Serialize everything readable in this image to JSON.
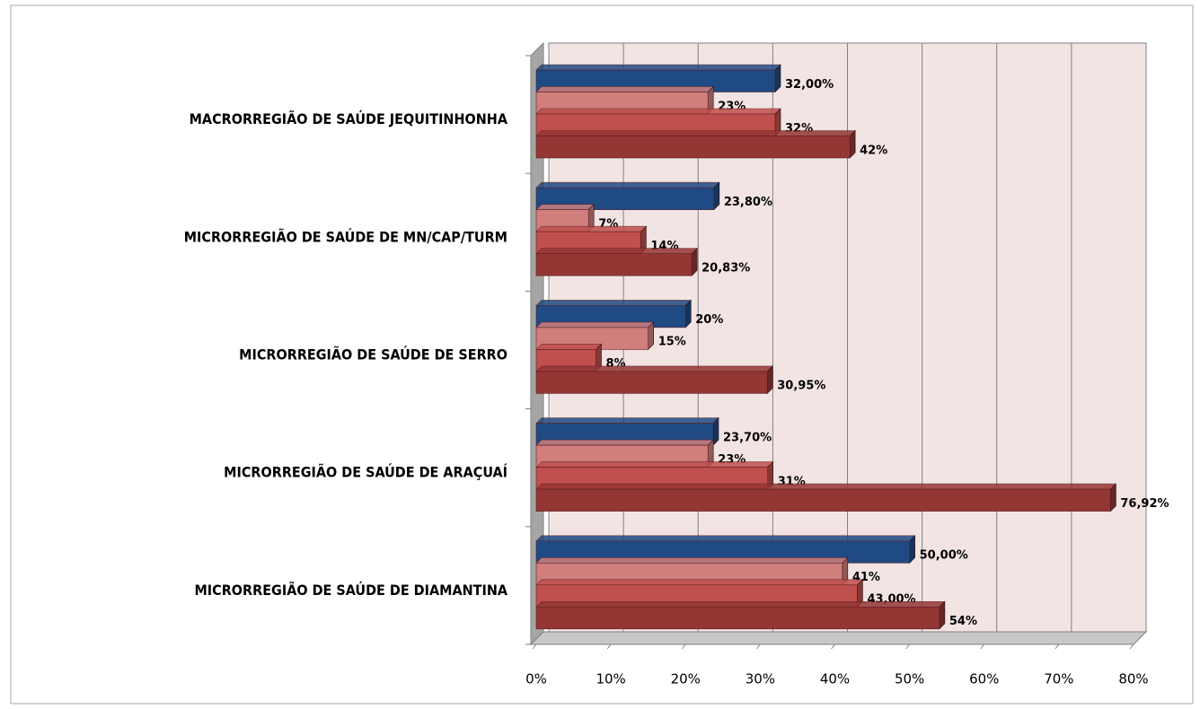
{
  "chart_data": {
    "type": "bar",
    "orientation": "horizontal",
    "categories": [
      "MACRORREGIÃO DE  SAÚDE  JEQUITINHONHA",
      "MICRORREGIÃO DE  SAÚDE  DE  MN/CAP/TURM",
      "MICRORREGIÃO DE  SAÚDE  DE SERRO",
      "MICRORREGIÃO DE  SAÚDE  DE ARAÇUAÍ",
      "MICRORREGIÃO DE  SAÚDE  DE  DIAMANTINA"
    ],
    "series": [
      {
        "color": "#1f4a84",
        "values": [
          32.0,
          23.8,
          20,
          23.7,
          50.0
        ],
        "value_labels": [
          "32,00%",
          "23,80%",
          "20%",
          "23,70%",
          "50,00%"
        ]
      },
      {
        "color": "#d07f7d",
        "values": [
          23,
          7,
          15,
          23,
          41
        ],
        "value_labels": [
          "23%",
          "7%",
          "15%",
          "23%",
          "41%"
        ]
      },
      {
        "color": "#c0504d",
        "values": [
          32,
          14,
          8,
          31,
          43.0
        ],
        "value_labels": [
          "32%",
          "14%",
          "8%",
          "31%",
          "43,00%"
        ]
      },
      {
        "color": "#943634",
        "values": [
          42,
          20.83,
          30.95,
          76.92,
          54
        ],
        "value_labels": [
          "42%",
          "20,83%",
          "30,95%",
          "76,92%",
          "54%"
        ]
      }
    ],
    "xlim": [
      0,
      80
    ],
    "xticks": [
      {
        "value": 0,
        "label": "0%"
      },
      {
        "value": 10,
        "label": "10%"
      },
      {
        "value": 20,
        "label": "20%"
      },
      {
        "value": 30,
        "label": "30%"
      },
      {
        "value": 40,
        "label": "40%"
      },
      {
        "value": 50,
        "label": "50%"
      },
      {
        "value": 60,
        "label": "60%"
      },
      {
        "value": 70,
        "label": "70%"
      },
      {
        "value": 80,
        "label": "80%"
      }
    ],
    "grid": true
  }
}
